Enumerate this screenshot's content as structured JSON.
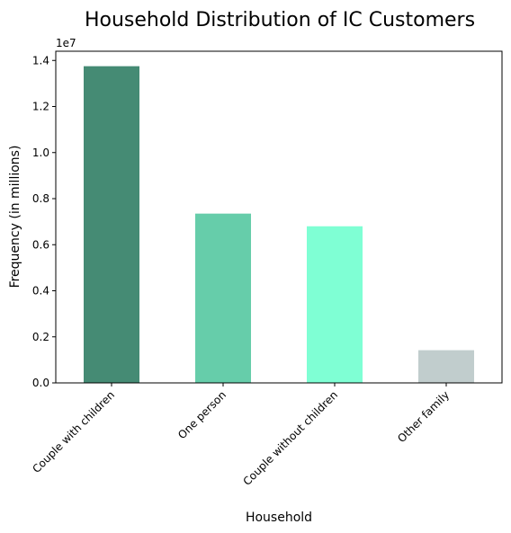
{
  "chart_data": {
    "type": "bar",
    "title": "Household Distribution of IC Customers",
    "xlabel": "Household",
    "ylabel": "Frequency (in millions)",
    "y_offset_label": "1e7",
    "categories": [
      "Couple with children",
      "One person",
      "Couple without children",
      "Other family"
    ],
    "values": [
      13750000,
      7350000,
      6800000,
      1420000
    ],
    "colors": [
      "#458b74",
      "#66cdaa",
      "#7fffd4",
      "#c1cdcd"
    ],
    "ylim": [
      0,
      14400000
    ],
    "y_ticks": [
      0,
      2000000,
      4000000,
      6000000,
      8000000,
      10000000,
      12000000,
      14000000
    ],
    "y_tick_labels": [
      "0.0",
      "0.2",
      "0.4",
      "0.6",
      "0.8",
      "1.0",
      "1.2",
      "1.4"
    ],
    "grid": false,
    "x_tick_rotation": -45
  }
}
